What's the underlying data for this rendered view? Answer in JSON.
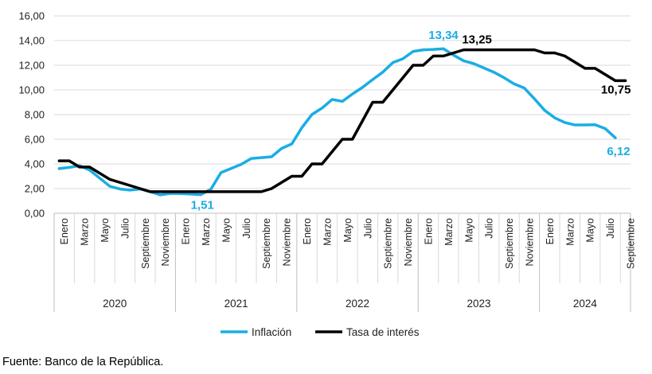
{
  "chart_data": {
    "type": "line",
    "title": "",
    "xlabel": "",
    "ylabel": "",
    "ylim": [
      0,
      16
    ],
    "ytick_labels": [
      "0,00",
      "2,00",
      "4,00",
      "6,00",
      "8,00",
      "10,00",
      "12,00",
      "14,00",
      "16,00"
    ],
    "month_labels": [
      "Enero",
      "Marzo",
      "Mayo",
      "Julio",
      "Septiembre",
      "Noviembre"
    ],
    "years": [
      "2020",
      "2021",
      "2022",
      "2023",
      "2024"
    ],
    "grid": true,
    "legend_position": "bottom",
    "series": [
      {
        "name": "Inflación",
        "color": "#1AADE4",
        "values": [
          3.62,
          3.72,
          3.86,
          3.51,
          2.85,
          2.19,
          1.97,
          1.88,
          1.97,
          1.75,
          1.49,
          1.61,
          1.6,
          1.56,
          1.51,
          1.95,
          3.3,
          3.63,
          3.97,
          4.44,
          4.51,
          4.58,
          5.26,
          5.62,
          6.94,
          8.01,
          8.53,
          9.23,
          9.07,
          9.67,
          10.21,
          10.84,
          11.44,
          12.22,
          12.53,
          13.12,
          13.25,
          13.28,
          13.34,
          12.82,
          12.36,
          12.13,
          11.78,
          11.43,
          10.99,
          10.48,
          10.15,
          9.28,
          8.35,
          7.74,
          7.36,
          7.16,
          7.16,
          7.18,
          6.86,
          6.12
        ]
      },
      {
        "name": "Tasa de interés",
        "color": "#000000",
        "values": [
          4.25,
          4.25,
          3.75,
          3.75,
          3.25,
          2.75,
          2.5,
          2.25,
          2.0,
          1.75,
          1.75,
          1.75,
          1.75,
          1.75,
          1.75,
          1.75,
          1.75,
          1.75,
          1.75,
          1.75,
          1.75,
          2.0,
          2.5,
          3.0,
          3.0,
          4.0,
          4.0,
          5.0,
          6.0,
          6.0,
          7.5,
          9.0,
          9.0,
          10.0,
          11.0,
          12.0,
          12.0,
          12.75,
          12.75,
          13.0,
          13.25,
          13.25,
          13.25,
          13.25,
          13.25,
          13.25,
          13.25,
          13.25,
          13.0,
          13.0,
          12.75,
          12.25,
          11.75,
          11.75,
          11.25,
          10.75,
          10.75
        ]
      }
    ],
    "annotations": [
      {
        "text": "13,34",
        "series": 0,
        "index": 38
      },
      {
        "text": "1,51",
        "series": 0,
        "index": 14
      },
      {
        "text": "6,12",
        "series": 0,
        "index": 55
      },
      {
        "text": "13,25",
        "series": 1,
        "index": 41
      },
      {
        "text": "10,75",
        "series": 1,
        "index": 56
      }
    ]
  },
  "source_note": "Fuente: Banco de la República."
}
